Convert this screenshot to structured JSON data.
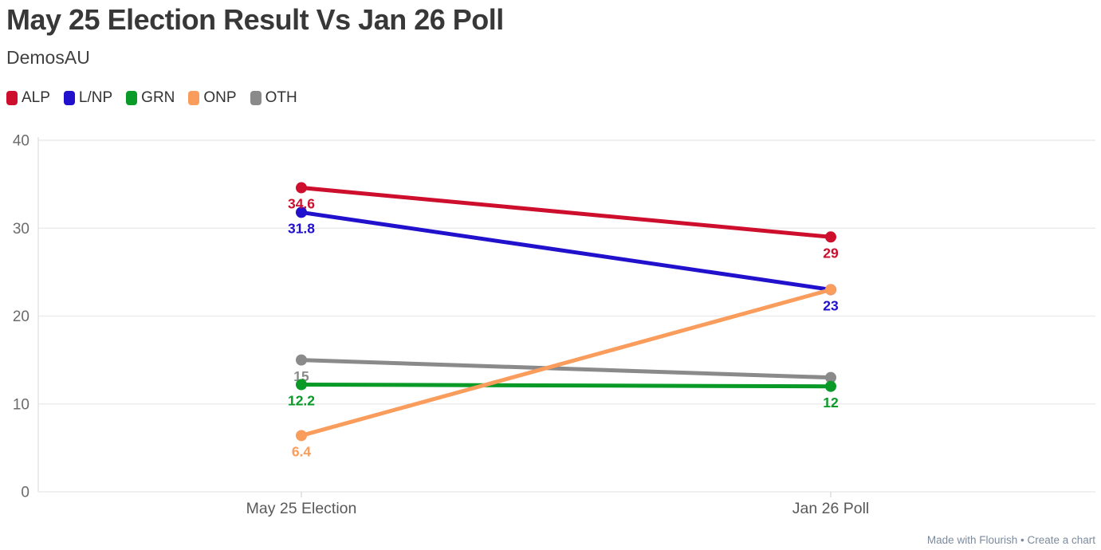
{
  "header": {
    "title": "May 25 Election Result Vs Jan 26 Poll",
    "subtitle": "DemosAU"
  },
  "footer": {
    "credit": "Made with Flourish • Create a chart"
  },
  "chart_data": {
    "type": "line",
    "title": "May 25 Election Result Vs Jan 26 Poll",
    "subtitle": "DemosAU",
    "categories": [
      "May 25 Election",
      "Jan 26 Poll"
    ],
    "series": [
      {
        "name": "ALP",
        "color": "#cd0e2c",
        "values": [
          34.6,
          29
        ],
        "point_labels": [
          "34.6",
          "29"
        ]
      },
      {
        "name": "L/NP",
        "color": "#2111cd",
        "values": [
          31.8,
          23
        ],
        "point_labels": [
          "31.8",
          "23"
        ]
      },
      {
        "name": "GRN",
        "color": "#0a9a28",
        "values": [
          12.2,
          12
        ],
        "point_labels": [
          "12.2",
          "12"
        ]
      },
      {
        "name": "ONP",
        "color": "#fa9d5c",
        "values": [
          6.4,
          23
        ],
        "point_labels": [
          "6.4",
          ""
        ]
      },
      {
        "name": "OTH",
        "color": "#8a8a8a",
        "values": [
          15,
          13
        ],
        "point_labels": [
          "15",
          ""
        ]
      }
    ],
    "draw_order": [
      "OTH",
      "GRN",
      "L/NP",
      "ALP",
      "ONP"
    ],
    "y_axis": {
      "min": 0,
      "max": 40,
      "ticks": [
        0,
        10,
        20,
        30,
        40
      ]
    },
    "grid": true,
    "legend_position": "top-left",
    "grid_color": "#ececec",
    "axis_text_color": "#6b6b6b",
    "category_text_color": "#595959"
  }
}
